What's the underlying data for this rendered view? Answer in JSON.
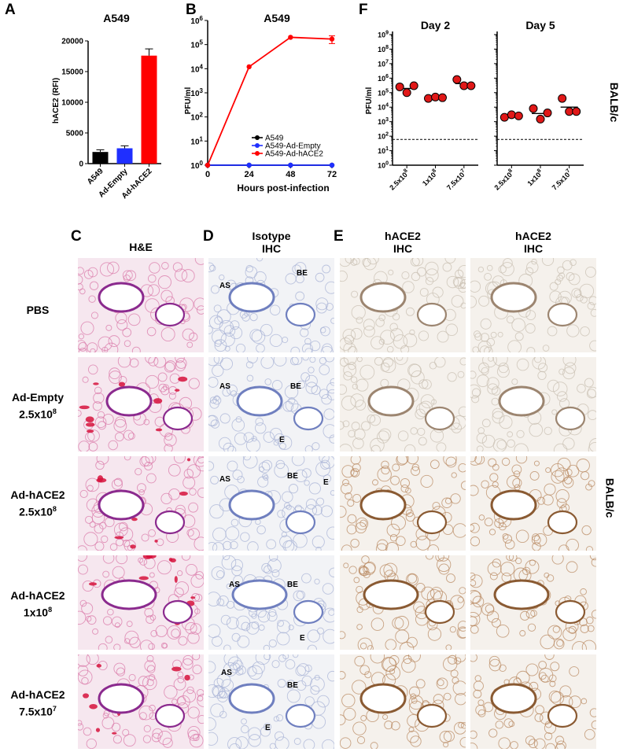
{
  "panel_letters": {
    "a": "A",
    "b": "B",
    "c": "C",
    "d": "D",
    "e": "E",
    "f": "F"
  },
  "chart_data": [
    {
      "id": "A",
      "type": "bar",
      "title": "A549",
      "ylabel": "hACE2 (RFI)",
      "xlabel": "",
      "categories": [
        "A549",
        "Ad-Empty",
        "Ad-hACE2"
      ],
      "values": [
        1900,
        2500,
        17600
      ],
      "errors": [
        350,
        400,
        1100
      ],
      "colors": [
        "#000000",
        "#1f2fff",
        "#ff0000"
      ],
      "ylim": [
        0,
        20000
      ],
      "yticks": [
        "0",
        "5000",
        "10000",
        "15000",
        "20000"
      ],
      "yticks_values": [
        0,
        5000,
        10000,
        15000,
        20000
      ]
    },
    {
      "id": "B",
      "type": "line",
      "title": "A549",
      "xlabel": "Hours post-infection",
      "ylabel": "PFU/ml",
      "x": [
        0,
        24,
        48,
        72
      ],
      "xticks": [
        "0",
        "24",
        "48",
        "72"
      ],
      "yscale": "log",
      "ylim_exp": [
        0,
        6
      ],
      "series": [
        {
          "name": "A549",
          "color": "#000000",
          "values": [
            1,
            1,
            1,
            1
          ]
        },
        {
          "name": "A549-Ad-Empty",
          "color": "#1f2fff",
          "values": [
            1,
            1,
            1,
            1
          ]
        },
        {
          "name": "A549-Ad-hACE2",
          "color": "#ff0000",
          "values": [
            1,
            12000,
            200000,
            170000
          ],
          "errors": [
            0,
            0,
            0,
            60000
          ]
        }
      ],
      "legend_position": "bottom-right"
    },
    {
      "id": "F",
      "type": "scatter",
      "ylabel": "PFU/ml",
      "yscale": "log",
      "ylim_exp": [
        0,
        9
      ],
      "limit_of_detection": 60,
      "categories": [
        "2.5x10^8",
        "1x10^8",
        "7.5x10^7"
      ],
      "subplots": [
        {
          "title": "Day 2",
          "points": [
            [
              250000,
              100000,
              300000
            ],
            [
              40000,
              50000,
              45000
            ],
            [
              800000,
              300000,
              300000
            ]
          ]
        },
        {
          "title": "Day 5",
          "points": [
            [
              2000,
              3000,
              2500
            ],
            [
              8000,
              1500,
              4000
            ],
            [
              40000,
              5000,
              5000
            ]
          ]
        }
      ],
      "side_label": "BALB/c"
    }
  ],
  "tick_sup_labels": {
    "b_exps": [
      "0",
      "1",
      "2",
      "3",
      "4",
      "5",
      "6"
    ],
    "f_exps": [
      "0",
      "1",
      "2",
      "3",
      "4",
      "5",
      "6",
      "7",
      "8",
      "9"
    ],
    "f_cats": [
      {
        "base": "2.5x10",
        "exp": "8"
      },
      {
        "base": "1x10",
        "exp": "8"
      },
      {
        "base": "7.5x10",
        "exp": "7"
      }
    ],
    "ten": "10"
  },
  "histology": {
    "columns": [
      {
        "letter": "C",
        "line1": "H&E",
        "line2": ""
      },
      {
        "letter": "D",
        "line1": "Isotype",
        "line2": "IHC"
      },
      {
        "letter": "E",
        "line1": "hACE2",
        "line2": "IHC"
      },
      {
        "letter": "",
        "line1": "hACE2",
        "line2": "IHC"
      }
    ],
    "rows": [
      {
        "line1": "PBS",
        "base": "",
        "exp": ""
      },
      {
        "line1": "Ad-Empty",
        "base": "2.5x10",
        "exp": "8"
      },
      {
        "line1": "Ad-hACE2",
        "base": "2.5x10",
        "exp": "8"
      },
      {
        "line1": "Ad-hACE2",
        "base": "1x10",
        "exp": "8"
      },
      {
        "line1": "Ad-hACE2",
        "base": "7.5x10",
        "exp": "7"
      }
    ],
    "annotations": {
      "as": "AS",
      "be": "BE",
      "e": "E"
    },
    "side_label": "BALB/c",
    "stain_colors": {
      "he": "#d94a8c",
      "isotype": "#8a9acb",
      "hace2": "#a56a3c"
    }
  }
}
